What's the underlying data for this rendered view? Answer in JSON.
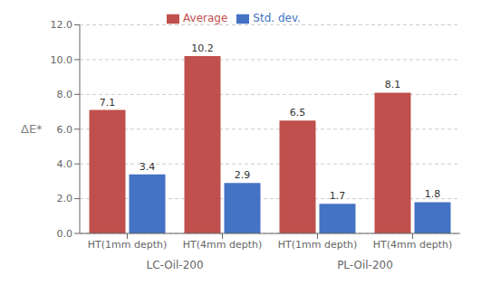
{
  "chart_data": {
    "type": "bar",
    "categories": [
      "HT(1mm depth)",
      "HT(4mm depth)",
      "HT(1mm depth)",
      "HT(4mm depth)"
    ],
    "series": [
      {
        "name": "Average",
        "color": "#C0504D",
        "values": [
          7.1,
          10.2,
          6.5,
          8.1
        ]
      },
      {
        "name": "Std. dev.",
        "color": "#4472C4",
        "values": [
          3.4,
          2.9,
          1.7,
          1.8
        ]
      }
    ],
    "ylabel": "ΔE*",
    "annotations": [
      "LC-Oil-200",
      "PL-Oil-200"
    ],
    "ylim": [
      0.0,
      12.0
    ],
    "yticks": [
      {
        "value": 0.0,
        "label": "0.0"
      },
      {
        "value": 2.0,
        "label": "2.0"
      },
      {
        "value": 4.0,
        "label": "4.0"
      },
      {
        "value": 6.0,
        "label": "6.0"
      },
      {
        "value": 8.0,
        "label": "8.0"
      },
      {
        "value": 10.0,
        "label": "10.0"
      },
      {
        "value": 12.0,
        "label": "12.0"
      }
    ],
    "grid": true,
    "legend": "top",
    "data_labels": true
  }
}
